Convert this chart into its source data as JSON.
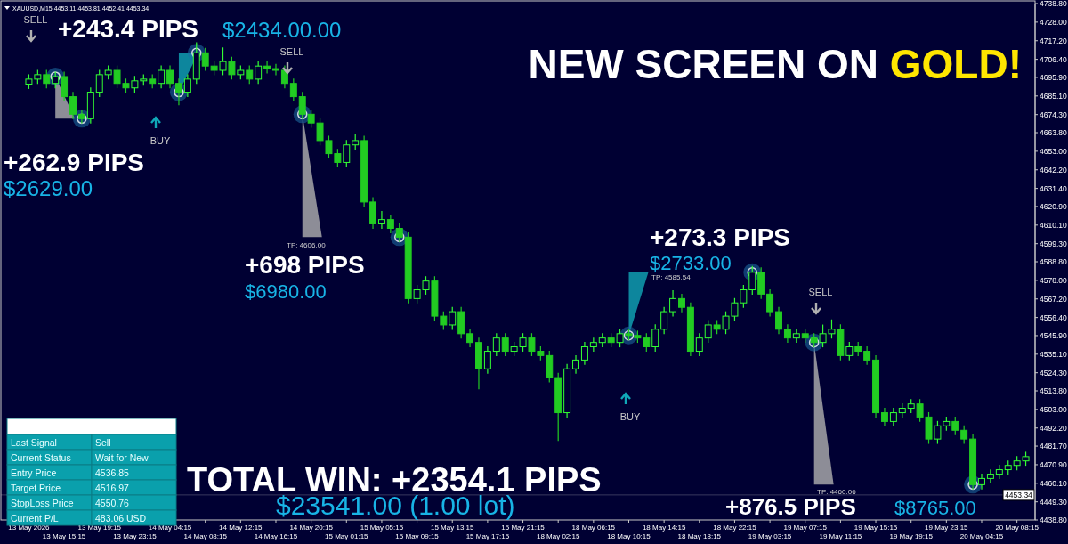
{
  "chart_data": {
    "type": "candlestick",
    "title": "XAUUSD,M15  4453.11 4453.81 4452.41 4453.34",
    "subtitle": "NEW SCREEN ON GOLD!",
    "categories": [
      "13 May 2026",
      null,
      null,
      null,
      "13 May 15:15",
      null,
      null,
      null,
      "13 May 19:15",
      null,
      null,
      null,
      "13 May 23:15",
      null,
      null,
      null,
      "14 May 04:15",
      null,
      null,
      null,
      "14 May 08:15",
      null,
      null,
      null,
      "14 May 12:15",
      null,
      null,
      null,
      "14 May 16:15",
      null,
      null,
      null,
      "14 May 20:15",
      null,
      null,
      null,
      "15 May 01:15",
      null,
      null,
      null,
      "15 May 05:15",
      null,
      null,
      null,
      "15 May 09:15",
      null,
      null,
      null,
      "15 May 13:15",
      null,
      null,
      null,
      "15 May 17:15",
      null,
      null,
      null,
      "15 May 21:15",
      null,
      null,
      null,
      "18 May 02:15",
      null,
      null,
      null,
      "18 May 06:15",
      null,
      null,
      null,
      "18 May 10:15",
      null,
      null,
      null,
      "18 May 14:15",
      null,
      null,
      null,
      "18 May 18:15",
      null,
      null,
      null,
      "18 May 22:15",
      null,
      null,
      null,
      "19 May 03:15",
      null,
      null,
      null,
      "19 May 07:15",
      null,
      null,
      null,
      "19 May 11:15",
      null,
      null,
      null,
      "19 May 15:15",
      null,
      null,
      null,
      "19 May 19:15",
      null,
      null,
      null,
      "19 May 23:15",
      null,
      null,
      null,
      "20 May 04:15",
      null,
      null,
      null,
      "20 May 08:15",
      null
    ],
    "ohlc": [
      [
        4692.0,
        4697.4,
        4689.5,
        4694.9
      ],
      [
        4694.9,
        4700.0,
        4692.4,
        4697.5
      ],
      [
        4697.5,
        4700.0,
        4689.9,
        4692.4
      ],
      [
        4692.4,
        4698.9,
        4689.9,
        4696.4
      ],
      [
        4696.4,
        4698.9,
        4682.2,
        4684.7
      ],
      [
        4684.7,
        4687.2,
        4672.0,
        4674.5
      ],
      [
        4674.5,
        4677.0,
        4669.4,
        4671.9
      ],
      [
        4671.9,
        4689.8,
        4669.4,
        4687.3
      ],
      [
        4687.3,
        4700.0,
        4684.8,
        4697.5
      ],
      [
        4697.5,
        4702.5,
        4695.0,
        4700.0
      ],
      [
        4700.0,
        4702.5,
        4689.9,
        4692.4
      ],
      [
        4692.4,
        4694.9,
        4687.3,
        4689.8
      ],
      [
        4689.8,
        4696.4,
        4687.3,
        4693.9
      ],
      [
        4693.9,
        4697.4,
        4691.4,
        4694.9
      ],
      [
        4694.9,
        4697.4,
        4689.9,
        4692.4
      ],
      [
        4692.4,
        4702.5,
        4689.9,
        4700.0
      ],
      [
        4700.0,
        4702.5,
        4689.9,
        4692.4
      ],
      [
        4692.4,
        4694.9,
        4680.0,
        4687.3
      ],
      [
        4687.3,
        4697.4,
        4684.8,
        4694.9
      ],
      [
        4694.9,
        4716.0,
        4692.4,
        4710.2
      ],
      [
        4710.2,
        4712.7,
        4700.0,
        4702.5
      ],
      [
        4702.5,
        4705.0,
        4697.5,
        4700.0
      ],
      [
        4700.0,
        4713.0,
        4697.5,
        4705.1
      ],
      [
        4705.1,
        4707.6,
        4695.0,
        4697.5
      ],
      [
        4697.5,
        4702.5,
        4695.0,
        4700.0
      ],
      [
        4700.0,
        4702.5,
        4692.4,
        4694.9
      ],
      [
        4694.9,
        4705.0,
        4692.4,
        4702.5
      ],
      [
        4702.5,
        4705.0,
        4698.5,
        4701.0
      ],
      [
        4701.0,
        4703.5,
        4697.5,
        4700.0
      ],
      [
        4700.0,
        4702.5,
        4689.9,
        4692.4
      ],
      [
        4692.4,
        4694.9,
        4682.2,
        4684.7
      ],
      [
        4684.7,
        4687.2,
        4672.0,
        4674.5
      ],
      [
        4674.5,
        4677.0,
        4666.9,
        4669.4
      ],
      [
        4669.4,
        4671.9,
        4656.7,
        4659.2
      ],
      [
        4659.2,
        4661.7,
        4649.1,
        4651.6
      ],
      [
        4651.6,
        4654.1,
        4644.0,
        4646.5
      ],
      [
        4646.5,
        4659.2,
        4644.0,
        4656.7
      ],
      [
        4656.7,
        4662.5,
        4654.2,
        4659.2
      ],
      [
        4659.2,
        4661.7,
        4621.0,
        4623.5
      ],
      [
        4623.5,
        4626.0,
        4608.3,
        4610.8
      ],
      [
        4610.8,
        4618.0,
        4608.3,
        4613.3
      ],
      [
        4613.3,
        4615.8,
        4605.7,
        4608.2
      ],
      [
        4608.2,
        4610.7,
        4600.6,
        4603.1
      ],
      [
        4603.1,
        4605.6,
        4564.9,
        4567.4
      ],
      [
        4567.4,
        4575.0,
        4564.9,
        4572.5
      ],
      [
        4572.5,
        4580.1,
        4570.0,
        4577.6
      ],
      [
        4577.6,
        4580.1,
        4554.7,
        4557.2
      ],
      [
        4557.2,
        4559.7,
        4549.6,
        4552.1
      ],
      [
        4552.1,
        4562.3,
        4549.6,
        4559.8
      ],
      [
        4559.8,
        4562.3,
        4544.5,
        4547.0
      ],
      [
        4547.0,
        4549.5,
        4539.4,
        4541.9
      ],
      [
        4541.9,
        4544.4,
        4515.0,
        4526.6
      ],
      [
        4526.6,
        4539.3,
        4524.1,
        4536.8
      ],
      [
        4536.8,
        4547.0,
        4534.3,
        4544.5
      ],
      [
        4544.5,
        4547.0,
        4534.3,
        4536.8
      ],
      [
        4536.8,
        4541.9,
        4534.3,
        4539.4
      ],
      [
        4539.4,
        4547.0,
        4536.9,
        4544.5
      ],
      [
        4544.5,
        4547.0,
        4534.3,
        4536.8
      ],
      [
        4536.8,
        4539.3,
        4531.8,
        4534.3
      ],
      [
        4534.3,
        4536.8,
        4519.0,
        4521.5
      ],
      [
        4521.5,
        4524.0,
        4485.0,
        4501.1
      ],
      [
        4501.1,
        4529.1,
        4498.6,
        4526.6
      ],
      [
        4526.6,
        4534.2,
        4524.1,
        4531.7
      ],
      [
        4531.7,
        4541.9,
        4529.2,
        4539.4
      ],
      [
        4539.4,
        4544.4,
        4536.9,
        4541.9
      ],
      [
        4541.9,
        4547.0,
        4539.4,
        4544.5
      ],
      [
        4544.5,
        4547.0,
        4539.4,
        4541.9
      ],
      [
        4541.9,
        4549.5,
        4539.4,
        4547.0
      ],
      [
        4547.0,
        4549.5,
        4543.5,
        4546.0
      ],
      [
        4546.0,
        4548.5,
        4542.0,
        4544.5
      ],
      [
        4544.5,
        4547.0,
        4536.9,
        4539.4
      ],
      [
        4539.4,
        4552.1,
        4536.9,
        4549.6
      ],
      [
        4549.6,
        4562.3,
        4547.1,
        4559.8
      ],
      [
        4559.8,
        4572.0,
        4557.3,
        4567.4
      ],
      [
        4567.4,
        4569.9,
        4559.8,
        4562.3
      ],
      [
        4562.3,
        4564.8,
        4534.3,
        4536.8
      ],
      [
        4536.8,
        4547.0,
        4534.3,
        4544.5
      ],
      [
        4544.5,
        4554.6,
        4542.0,
        4552.1
      ],
      [
        4552.1,
        4554.6,
        4547.1,
        4549.6
      ],
      [
        4549.6,
        4559.7,
        4547.1,
        4557.2
      ],
      [
        4557.2,
        4567.4,
        4554.7,
        4564.9
      ],
      [
        4564.9,
        4575.0,
        4562.4,
        4572.5
      ],
      [
        4572.5,
        4586.0,
        4570.0,
        4582.7
      ],
      [
        4582.7,
        4585.2,
        4567.5,
        4570.0
      ],
      [
        4570.0,
        4572.5,
        4557.3,
        4559.8
      ],
      [
        4559.8,
        4562.3,
        4547.1,
        4549.6
      ],
      [
        4549.6,
        4552.1,
        4542.0,
        4544.5
      ],
      [
        4544.5,
        4549.5,
        4542.0,
        4547.0
      ],
      [
        4547.0,
        4549.5,
        4542.0,
        4544.5
      ],
      [
        4544.5,
        4547.0,
        4539.4,
        4541.9
      ],
      [
        4541.9,
        4552.0,
        4539.4,
        4547.0
      ],
      [
        4547.0,
        4555.0,
        4544.5,
        4549.6
      ],
      [
        4549.6,
        4552.1,
        4531.8,
        4534.3
      ],
      [
        4534.3,
        4541.9,
        4531.8,
        4539.4
      ],
      [
        4539.4,
        4541.9,
        4534.3,
        4536.8
      ],
      [
        4536.8,
        4539.3,
        4529.2,
        4531.7
      ],
      [
        4531.7,
        4534.2,
        4498.6,
        4501.1
      ],
      [
        4501.1,
        4503.6,
        4493.5,
        4496.0
      ],
      [
        4496.0,
        4503.6,
        4493.5,
        4501.1
      ],
      [
        4501.1,
        4506.2,
        4498.6,
        4503.7
      ],
      [
        4503.7,
        4508.7,
        4501.2,
        4506.2
      ],
      [
        4506.2,
        4508.7,
        4496.1,
        4498.6
      ],
      [
        4498.6,
        4501.1,
        4483.3,
        4485.8
      ],
      [
        4485.8,
        4496.0,
        4483.3,
        4493.5
      ],
      [
        4493.5,
        4498.5,
        4491.0,
        4496.0
      ],
      [
        4496.0,
        4498.5,
        4488.4,
        4490.9
      ],
      [
        4490.9,
        4493.4,
        4483.3,
        4485.8
      ],
      [
        4485.8,
        4488.3,
        4456.8,
        4459.3
      ],
      [
        4459.3,
        4465.4,
        4456.8,
        4462.9
      ],
      [
        4462.9,
        4467.9,
        4460.4,
        4465.4
      ],
      [
        4465.4,
        4470.5,
        4462.9,
        4468.0
      ],
      [
        4468.0,
        4473.0,
        4465.5,
        4470.5
      ],
      [
        4470.5,
        4475.6,
        4468.0,
        4473.1
      ],
      [
        4473.1,
        4478.1,
        4470.6,
        4475.6
      ]
    ],
    "series": [
      {
        "type": "scatter",
        "color": "#1d6fa5",
        "values": [
          null,
          null,
          null,
          4696.4,
          null,
          null,
          4671.9,
          null,
          null,
          null,
          null,
          null,
          null,
          null,
          null,
          null,
          null,
          4687.3,
          null,
          4710.2,
          null,
          null,
          null,
          null,
          null,
          null,
          null,
          null,
          null,
          null,
          null,
          4674.5,
          null,
          null,
          null,
          null,
          null,
          null,
          null,
          null,
          null,
          null,
          4603.1,
          null,
          null,
          null,
          null,
          null,
          null,
          null,
          null,
          null,
          null,
          null,
          null,
          null,
          null,
          null,
          null,
          null,
          null,
          null,
          null,
          null,
          null,
          null,
          null,
          null,
          4546.0,
          null,
          null,
          null,
          null,
          null,
          null,
          null,
          null,
          null,
          null,
          null,
          null,
          null,
          4582.7,
          null,
          null,
          null,
          null,
          null,
          null,
          4541.9,
          null,
          null,
          null,
          null,
          null,
          null,
          null,
          null,
          null,
          null,
          null,
          null,
          null,
          null,
          null,
          null,
          null,
          4459.3,
          null,
          null,
          null,
          null,
          null,
          null
        ]
      }
    ],
    "marker": "circle",
    "ylim": [
      4438.8,
      4738.8
    ],
    "yticks": [
      {
        "value": 4738.8,
        "label": "4738.80"
      },
      {
        "value": 4728.0,
        "label": "4728.00"
      },
      {
        "value": 4717.2,
        "label": "4717.20"
      },
      {
        "value": 4706.4,
        "label": "4706.40"
      },
      {
        "value": 4695.9,
        "label": "4695.90"
      },
      {
        "value": 4685.1,
        "label": "4685.10"
      },
      {
        "value": 4674.3,
        "label": "4674.30"
      },
      {
        "value": 4663.8,
        "label": "4663.80"
      },
      {
        "value": 4653.0,
        "label": "4653.00"
      },
      {
        "value": 4642.2,
        "label": "4642.20"
      },
      {
        "value": 4631.4,
        "label": "4631.40"
      },
      {
        "value": 4620.9,
        "label": "4620.90"
      },
      {
        "value": 4610.1,
        "label": "4610.10"
      },
      {
        "value": 4599.3,
        "label": "4599.30"
      },
      {
        "value": 4588.8,
        "label": "4588.80"
      },
      {
        "value": 4578.0,
        "label": "4578.00"
      },
      {
        "value": 4567.2,
        "label": "4567.20"
      },
      {
        "value": 4556.4,
        "label": "4556.40"
      },
      {
        "value": 4545.9,
        "label": "4545.90"
      },
      {
        "value": 4535.1,
        "label": "4535.10"
      },
      {
        "value": 4524.3,
        "label": "4524.30"
      },
      {
        "value": 4513.8,
        "label": "4513.80"
      },
      {
        "value": 4503.0,
        "label": "4503.00"
      },
      {
        "value": 4492.2,
        "label": "4492.20"
      },
      {
        "value": 4481.7,
        "label": "4481.70"
      },
      {
        "value": 4470.9,
        "label": "4470.90"
      },
      {
        "value": 4460.1,
        "label": "4460.10"
      },
      {
        "value": 4449.3,
        "label": "4449.30"
      },
      {
        "value": 4438.8,
        "label": "4438.80"
      }
    ],
    "ref_lines": [
      {
        "axis": "y",
        "value": 4453.34,
        "label": "4453.34",
        "color": "#c0c0c0"
      }
    ],
    "grid": false,
    "annotations": [
      "SELL",
      "BUY",
      "SELL",
      "BUY",
      "SELL",
      "+243.4 PIPS",
      "$2434.00.00",
      "+262.9 PIPS",
      "$2629.00",
      "+698 PIPS",
      "$6980.00",
      "+273.3 PIPS",
      "$2733.00",
      "+876.5 PIPS",
      "$8765.00",
      "TOTAL WIN: +2354.1 PIPS",
      "$23541.00 (1.00 lot)",
      "TP: 4606.00",
      "TP: 4585.54",
      "TP: 4460.06",
      "Last Signal",
      "Sell",
      "Current Status",
      "Wait for New",
      "Entry Price",
      "4536.85",
      "Target Price",
      "4516.97",
      "StopLoss Price",
      "4550.76",
      "Current P/L",
      "483.06 USD"
    ]
  }
}
